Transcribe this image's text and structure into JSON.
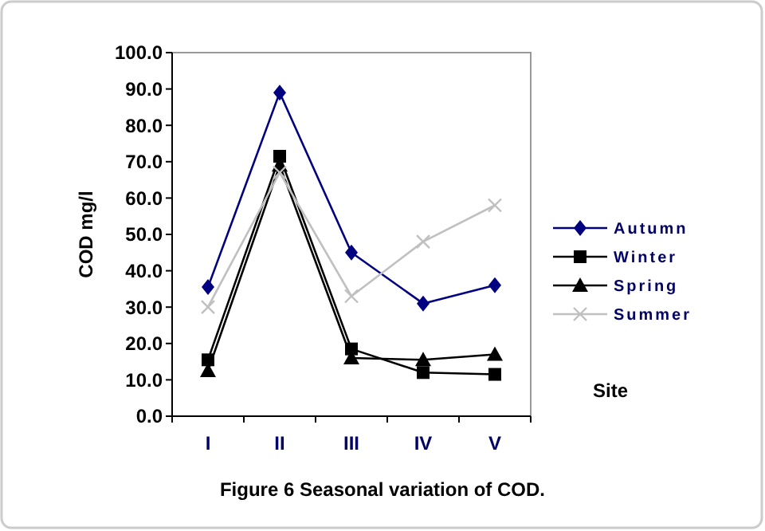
{
  "chart_data": {
    "type": "line",
    "title": "Figure 6 Seasonal variation of COD.",
    "xlabel": "Site",
    "ylabel": "COD mg/l",
    "categories": [
      "I",
      "II",
      "III",
      "IV",
      "V"
    ],
    "series": [
      {
        "name": "Autumn",
        "color": "#000080",
        "marker": "diamond",
        "values": [
          35.5,
          89,
          45,
          31,
          36
        ]
      },
      {
        "name": "Winter",
        "color": "#000000",
        "marker": "square",
        "values": [
          15.5,
          71.5,
          18.5,
          12,
          11.5
        ]
      },
      {
        "name": "Spring",
        "color": "#000000",
        "marker": "triangle",
        "values": [
          12.5,
          69,
          16,
          15.5,
          17
        ]
      },
      {
        "name": "Summer",
        "color": "#c0c0c0",
        "marker": "cross",
        "values": [
          30,
          67,
          33,
          48,
          58
        ]
      }
    ],
    "ylim": [
      0,
      100
    ],
    "yticks": [
      {
        "value": 0,
        "label": "0.0"
      },
      {
        "value": 10,
        "label": "10.0"
      },
      {
        "value": 20,
        "label": "20.0"
      },
      {
        "value": 30,
        "label": "30.0"
      },
      {
        "value": 40,
        "label": "40.0"
      },
      {
        "value": 50,
        "label": "50.0"
      },
      {
        "value": 60,
        "label": "60.0"
      },
      {
        "value": 70,
        "label": "70.0"
      },
      {
        "value": 80,
        "label": "80.0"
      },
      {
        "value": 90,
        "label": "90.0"
      },
      {
        "value": 100,
        "label": "100.0"
      }
    ],
    "grid": false,
    "legend": "right",
    "line_style": "solid"
  }
}
